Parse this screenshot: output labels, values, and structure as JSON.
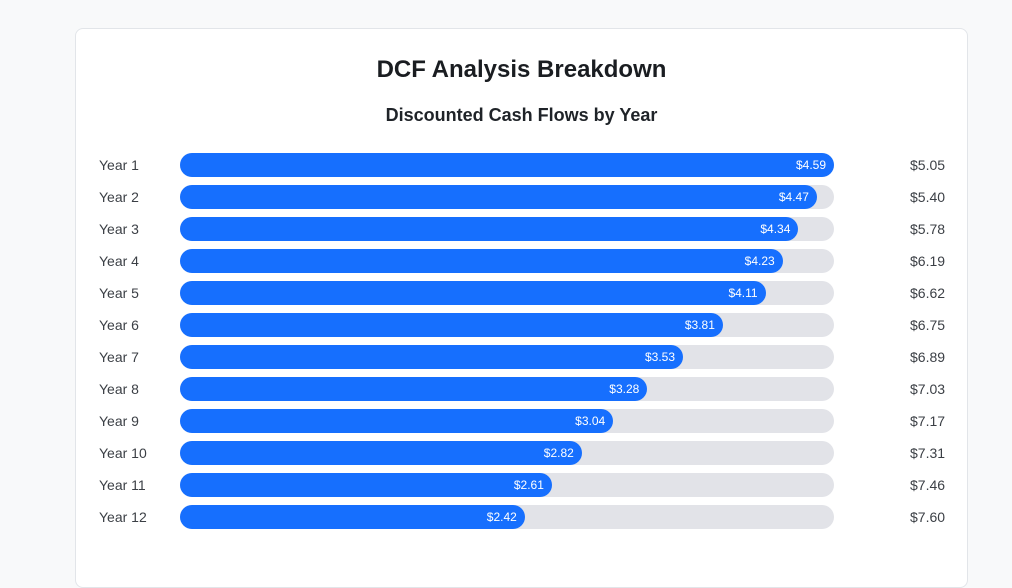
{
  "chart_data": {
    "type": "bar",
    "orientation": "horizontal",
    "title": "DCF Analysis Breakdown",
    "subtitle": "Discounted Cash Flows by Year",
    "categories": [
      "Year 1",
      "Year 2",
      "Year 3",
      "Year 4",
      "Year 5",
      "Year 6",
      "Year 7",
      "Year 8",
      "Year 9",
      "Year 10",
      "Year 11",
      "Year 12"
    ],
    "values": [
      4.59,
      4.47,
      4.34,
      4.23,
      4.11,
      3.81,
      3.53,
      3.28,
      3.04,
      2.82,
      2.61,
      2.42
    ],
    "value_labels": [
      "$4.59",
      "$4.47",
      "$4.34",
      "$4.23",
      "$4.11",
      "$3.81",
      "$3.53",
      "$3.28",
      "$3.04",
      "$2.82",
      "$2.61",
      "$2.42"
    ],
    "right_labels": [
      "$5.05",
      "$5.40",
      "$5.78",
      "$6.19",
      "$6.62",
      "$6.75",
      "$6.89",
      "$7.03",
      "$7.17",
      "$7.31",
      "$7.46",
      "$7.60"
    ],
    "xlim": [
      0,
      4.59
    ],
    "grid": false,
    "colors": {
      "bar": "#166ffe",
      "track": "#e2e3e8"
    }
  }
}
